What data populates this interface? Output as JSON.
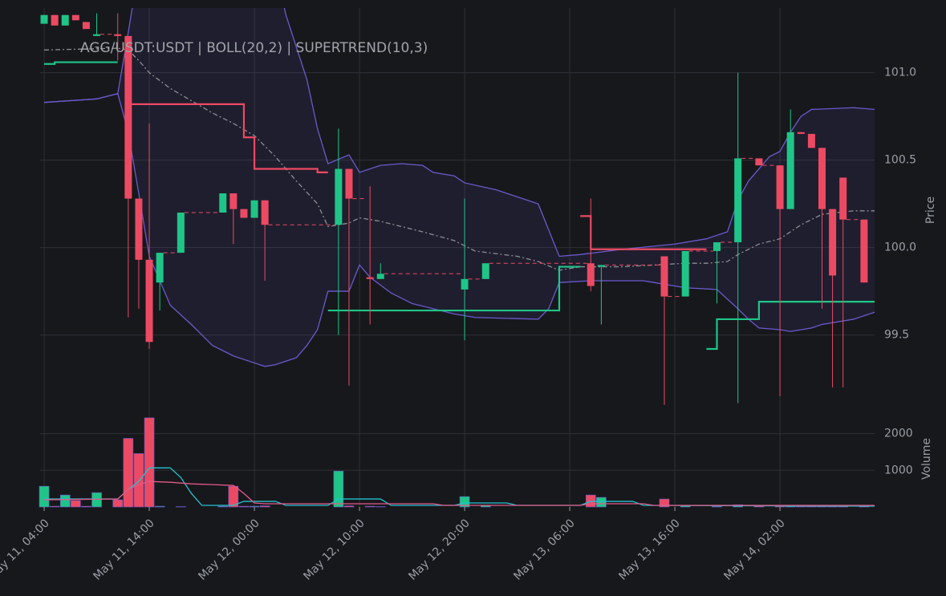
{
  "chart_data": {
    "type": "candlestick",
    "title": "AGG/USDT:USDT | BOLL(20,2) | SUPERTREND(10,3)",
    "y_label": "Price",
    "y2_label": "Volume",
    "up_color": "#1fc587",
    "down_color": "#ec4a63",
    "grid": true,
    "x": [
      "May 11, 04:00",
      "May 11, 05:00",
      "May 11, 06:00",
      "May 11, 07:00",
      "May 11, 08:00",
      "May 11, 09:00",
      "May 11, 11:00",
      "May 11, 12:00",
      "May 11, 13:00",
      "May 11, 14:00",
      "May 11, 15:00",
      "May 11, 17:00",
      "May 11, 21:00",
      "May 11, 22:00",
      "May 11, 23:00",
      "May 12, 00:00",
      "May 12, 01:00",
      "May 12, 08:00",
      "May 12, 09:00",
      "May 12, 11:00",
      "May 12, 12:00",
      "May 12, 20:00",
      "May 12, 22:00",
      "May 13, 08:00",
      "May 13, 09:00",
      "May 13, 15:00",
      "May 13, 17:00",
      "May 13, 20:00",
      "May 13, 22:00",
      "May 14, 00:00",
      "May 14, 02:00",
      "May 14, 03:00",
      "May 14, 04:00",
      "May 14, 05:00",
      "May 14, 06:00",
      "May 14, 07:00",
      "May 14, 08:00",
      "May 14, 10:00"
    ],
    "open": [
      101.28,
      101.33,
      101.27,
      101.33,
      101.29,
      101.21,
      101.22,
      101.21,
      100.28,
      99.93,
      99.8,
      99.97,
      100.2,
      100.31,
      100.22,
      100.17,
      100.27,
      100.13,
      100.45,
      99.83,
      99.82,
      99.76,
      99.82,
      99.91,
      99.89,
      99.95,
      99.72,
      99.98,
      100.03,
      100.51,
      100.47,
      100.22,
      100.66,
      100.65,
      100.57,
      100.22,
      100.4,
      100.16
    ],
    "high": [
      101.33,
      101.33,
      101.33,
      101.33,
      101.29,
      101.34,
      101.34,
      101.21,
      100.28,
      100.71,
      99.97,
      100.2,
      100.31,
      100.31,
      100.22,
      100.27,
      100.27,
      100.68,
      100.45,
      100.35,
      99.91,
      100.28,
      99.91,
      100.28,
      99.9,
      99.95,
      99.98,
      100.03,
      101.0,
      100.51,
      100.47,
      100.79,
      100.66,
      100.65,
      100.57,
      100.22,
      100.4,
      100.16
    ],
    "low": [
      101.28,
      101.27,
      101.27,
      101.3,
      101.25,
      101.21,
      101.07,
      99.6,
      99.65,
      99.42,
      99.64,
      99.97,
      100.2,
      100.02,
      100.17,
      100.17,
      99.81,
      99.5,
      99.21,
      99.56,
      99.82,
      99.47,
      99.82,
      99.75,
      99.56,
      99.1,
      99.72,
      99.68,
      99.11,
      100.47,
      99.15,
      100.22,
      100.65,
      100.57,
      99.65,
      99.2,
      99.2,
      99.8
    ],
    "close": [
      101.33,
      101.27,
      101.33,
      101.3,
      101.25,
      101.22,
      101.21,
      100.28,
      99.93,
      99.46,
      99.97,
      100.2,
      100.31,
      100.22,
      100.17,
      100.27,
      100.13,
      100.45,
      100.28,
      99.82,
      99.85,
      99.82,
      99.91,
      99.78,
      99.9,
      99.72,
      99.98,
      100.03,
      100.51,
      100.47,
      100.22,
      100.66,
      100.65,
      100.57,
      100.22,
      99.84,
      100.16,
      99.8
    ],
    "volume": [
      565,
      20,
      326,
      174,
      20,
      391,
      196,
      1870,
      1456,
      2430,
      20,
      10,
      20,
      565,
      20,
      20,
      30,
      978,
      30,
      20,
      10,
      283,
      40,
      326,
      261,
      217,
      40,
      20,
      60,
      30,
      40,
      30,
      20,
      20,
      20,
      20,
      20,
      20
    ],
    "xlim": [
      "May 11, 03:36",
      "May 14, 11:00"
    ],
    "xticks": [
      "May 11, 04:00",
      "May 11, 14:00",
      "May 12, 00:00",
      "May 12, 10:00",
      "May 12, 20:00",
      "May 13, 06:00",
      "May 13, 16:00",
      "May 14, 02:00"
    ],
    "ylim": [
      99.03,
      101.37
    ],
    "yticks": [
      99.5,
      {
        "value": 100,
        "label": "100.0"
      },
      100.5,
      {
        "value": 101,
        "label": "101.0"
      }
    ],
    "y2lim": [
      0,
      2450
    ],
    "y2ticks": [
      1000,
      2000
    ],
    "overlays": [
      {
        "color": "#6a5acd",
        "dash": "",
        "x": [
          "May 11, 04:00",
          "May 11, 09:00",
          "May 11, 11:00",
          "May 11, 12:00",
          "May 11, 13:00",
          "May 12, 02:00",
          "May 12, 03:00",
          "May 12, 05:00",
          "May 12, 06:00",
          "May 12, 07:00",
          "May 12, 09:00",
          "May 12, 10:00",
          "May 12, 12:00",
          "May 12, 14:00",
          "May 12, 16:00",
          "May 12, 17:00",
          "May 12, 19:00",
          "May 12, 20:00",
          "May 12, 23:00",
          "May 13, 01:00",
          "May 13, 03:00",
          "May 13, 05:00",
          "May 13, 07:00",
          "May 13, 11:00",
          "May 13, 16:00",
          "May 13, 19:00",
          "May 13, 21:00",
          "May 13, 22:00",
          "May 13, 23:00",
          "May 14, 01:00",
          "May 14, 02:00",
          "May 14, 03:00",
          "May 14, 04:00",
          "May 14, 05:00",
          "May 14, 09:00",
          "May 14, 11:00"
        ],
        "values": [
          100.83,
          100.85,
          100.88,
          101.23,
          101.6,
          101.6,
          101.33,
          100.96,
          100.68,
          100.48,
          100.53,
          100.43,
          100.47,
          100.48,
          100.47,
          100.43,
          100.41,
          100.37,
          100.33,
          100.29,
          100.25,
          99.95,
          99.96,
          99.99,
          100.02,
          100.05,
          100.09,
          100.27,
          100.38,
          100.52,
          100.55,
          100.66,
          100.75,
          100.79,
          100.8,
          100.79
        ]
      },
      {
        "color": "#6a5acd",
        "dash": "",
        "x": [
          "May 11, 04:00",
          "May 11, 09:00",
          "May 11, 11:00",
          "May 11, 12:00",
          "May 11, 13:00",
          "May 11, 14:00",
          "May 11, 16:00",
          "May 11, 18:00",
          "May 11, 20:00",
          "May 11, 22:00",
          "May 12, 00:00",
          "May 12, 01:00",
          "May 12, 02:00",
          "May 12, 04:00",
          "May 12, 05:00",
          "May 12, 06:00",
          "May 12, 07:00",
          "May 12, 09:00",
          "May 12, 10:00",
          "May 12, 11:00",
          "May 12, 13:00",
          "May 12, 15:00",
          "May 12, 19:00",
          "May 12, 21:00",
          "May 13, 03:00",
          "May 13, 04:00",
          "May 13, 05:00",
          "May 13, 08:00",
          "May 13, 13:00",
          "May 13, 14:00",
          "May 13, 17:00",
          "May 13, 20:00",
          "May 13, 22:00",
          "May 13, 23:00",
          "May 14, 00:00",
          "May 14, 02:00",
          "May 14, 03:00",
          "May 14, 05:00",
          "May 14, 06:00",
          "May 14, 09:00",
          "May 14, 11:00"
        ],
        "values": [
          100.83,
          100.85,
          100.88,
          100.66,
          100.31,
          99.95,
          99.67,
          99.56,
          99.44,
          99.38,
          99.34,
          99.32,
          99.33,
          99.37,
          99.44,
          99.53,
          99.75,
          99.75,
          99.9,
          99.83,
          99.74,
          99.68,
          99.62,
          99.6,
          99.59,
          99.65,
          99.8,
          99.81,
          99.81,
          99.8,
          99.77,
          99.76,
          99.65,
          99.59,
          99.54,
          99.53,
          99.52,
          99.54,
          99.56,
          99.59,
          99.63
        ]
      },
      {
        "color": "#8a8d93",
        "dash": "6 3 2 3",
        "x": [
          "May 11, 04:00",
          "May 11, 11:00",
          "May 11, 12:00",
          "May 11, 13:00",
          "May 11, 14:00",
          "May 11, 16:00",
          "May 11, 18:00",
          "May 11, 20:00",
          "May 11, 22:00",
          "May 12, 00:00",
          "May 12, 02:00",
          "May 12, 04:00",
          "May 12, 06:00",
          "May 12, 07:00",
          "May 12, 09:00",
          "May 12, 10:00",
          "May 12, 12:00",
          "May 12, 14:00",
          "May 12, 16:00",
          "May 12, 19:00",
          "May 12, 21:00",
          "May 13, 01:00",
          "May 13, 03:00",
          "May 13, 05:00",
          "May 13, 07:00",
          "May 13, 11:00",
          "May 13, 14:00",
          "May 13, 17:00",
          "May 13, 19:00",
          "May 13, 21:00",
          "May 13, 22:00",
          "May 14, 00:00",
          "May 14, 02:00",
          "May 14, 03:00",
          "May 14, 04:00",
          "May 14, 06:00",
          "May 14, 09:00",
          "May 14, 11:00"
        ],
        "values": [
          101.13,
          101.14,
          101.13,
          101.07,
          101.0,
          100.91,
          100.84,
          100.77,
          100.71,
          100.64,
          100.52,
          100.38,
          100.25,
          100.12,
          100.14,
          100.17,
          100.15,
          100.12,
          100.09,
          100.04,
          99.98,
          99.95,
          99.92,
          99.87,
          99.89,
          99.89,
          99.9,
          99.91,
          99.91,
          99.92,
          99.96,
          100.02,
          100.05,
          100.09,
          100.13,
          100.19,
          100.21,
          100.21
        ]
      },
      {
        "color": "#ec4a63",
        "dash": "",
        "x": [
          "May 11, 12:00",
          "May 11, 23:00",
          "May 11, 23:00",
          "May 12, 00:00",
          "May 12, 00:00",
          "May 12, 06:00",
          "May 12, 06:00",
          "May 12, 07:00",
          "May 12, 20:00",
          "May 13, 07:00",
          "May 13, 08:00",
          "May 13, 08:00",
          "May 13, 19:00"
        ],
        "values": [
          100.82,
          100.82,
          100.63,
          100.63,
          100.45,
          100.45,
          100.43,
          100.43,
          null,
          100.18,
          100.18,
          99.99,
          99.99
        ]
      },
      {
        "color": "#1fc587",
        "dash": "",
        "x": [
          "May 11, 04:00",
          "May 11, 05:00",
          "May 11, 05:00",
          "May 11, 11:00",
          "May 12, 00:00",
          "May 12, 07:00",
          "May 13, 05:00",
          "May 13, 05:00",
          "May 13, 07:00",
          "May 13, 12:00",
          "May 13, 19:00",
          "May 13, 20:00",
          "May 13, 20:00",
          "May 14, 00:00",
          "May 14, 00:00",
          "May 14, 11:00"
        ],
        "values": [
          101.05,
          101.05,
          101.06,
          101.06,
          null,
          99.64,
          99.64,
          99.89,
          99.89,
          null,
          99.42,
          99.42,
          99.59,
          99.59,
          99.69,
          99.69
        ]
      }
    ],
    "volume_overlays": [
      {
        "color": "#24c2cf",
        "x": [
          "May 11, 04:00",
          "May 11, 11:00",
          "May 11, 12:00",
          "May 11, 13:00",
          "May 11, 14:00",
          "May 11, 16:00",
          "May 11, 17:00",
          "May 11, 18:00",
          "May 11, 19:00",
          "May 11, 22:00",
          "May 11, 23:00",
          "May 12, 02:00",
          "May 12, 03:00",
          "May 12, 07:00",
          "May 12, 08:00",
          "May 12, 12:00",
          "May 12, 13:00",
          "May 12, 19:00",
          "May 12, 20:00",
          "May 13, 00:00",
          "May 13, 01:00",
          "May 13, 07:00",
          "May 13, 08:00",
          "May 13, 12:00",
          "May 13, 13:00",
          "May 14, 11:00"
        ],
        "values": [
          217,
          217,
          478,
          696,
          1065,
          1065,
          804,
          370,
          43,
          43,
          152,
          152,
          43,
          43,
          217,
          217,
          43,
          43,
          109,
          109,
          43,
          43,
          152,
          152,
          43,
          22
        ]
      },
      {
        "color": "#e35a88",
        "x": [
          "May 11, 04:00",
          "May 11, 11:00",
          "May 11, 12:00",
          "May 11, 13:00",
          "May 11, 14:00",
          "May 11, 16:00",
          "May 11, 18:00",
          "May 11, 20:00",
          "May 11, 22:00",
          "May 11, 23:00",
          "May 12, 00:00",
          "May 12, 01:00",
          "May 12, 07:00",
          "May 12, 17:00",
          "May 12, 18:00",
          "May 13, 07:00",
          "May 13, 08:00",
          "May 13, 13:00",
          "May 13, 14:00",
          "May 14, 11:00"
        ],
        "values": [
          196,
          217,
          478,
          609,
          696,
          674,
          630,
          609,
          587,
          370,
          109,
          87,
          87,
          87,
          43,
          43,
          87,
          87,
          43,
          43
        ]
      }
    ]
  }
}
